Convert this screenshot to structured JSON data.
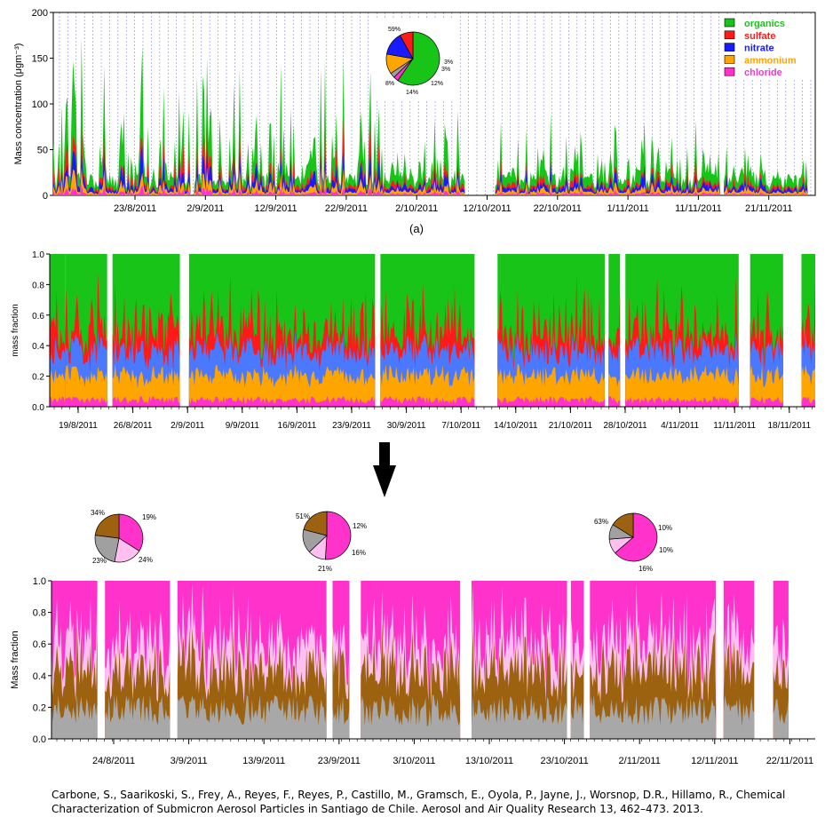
{
  "chart_data": [
    {
      "type": "area",
      "panel_label": "(a)",
      "ylabel": "Mass concentration (μgm⁻³)",
      "ylim": [
        0,
        200
      ],
      "y_ticks": [
        0,
        50,
        100,
        150,
        200
      ],
      "x_ticks": [
        "23/8/2011",
        "2/9/2011",
        "12/9/2011",
        "22/9/2011",
        "2/10/2011",
        "12/10/2011",
        "22/10/2011",
        "1/11/2011",
        "11/11/2011",
        "21/11/2011"
      ],
      "legend_position": "top-right",
      "series": [
        {
          "name": "organics",
          "color": "#18c418"
        },
        {
          "name": "sulfate",
          "color": "#ff1a1a"
        },
        {
          "name": "nitrate",
          "color": "#1a1aff"
        },
        {
          "name": "ammonium",
          "color": "#ffa500"
        },
        {
          "name": "chloride",
          "color": "#ff33cc"
        }
      ],
      "segments": [
        {
          "start": 0.0,
          "end": 0.18,
          "peak": 150
        },
        {
          "start": 0.185,
          "end": 0.42,
          "peak": 140
        },
        {
          "start": 0.42,
          "end": 0.54,
          "peak": 85
        },
        {
          "start": 0.58,
          "end": 0.875,
          "peak": 75
        },
        {
          "start": 0.88,
          "end": 0.99,
          "peak": 35
        }
      ],
      "inset_pie": {
        "slices": [
          {
            "name": "organics",
            "value": 59,
            "label": "59%",
            "color": "#18c418"
          },
          {
            "name": "chloride",
            "value": 3,
            "label": "3%",
            "color": "#ff33cc"
          },
          {
            "name": "other",
            "value": 3,
            "label": "3%",
            "color": "#a0a0a0"
          },
          {
            "name": "ammonium",
            "value": 12,
            "label": "12%",
            "color": "#ffa500"
          },
          {
            "name": "nitrate",
            "value": 14,
            "label": "14%",
            "color": "#1a1aff"
          },
          {
            "name": "sulfate",
            "value": 8,
            "label": "8%",
            "color": "#ff1a1a"
          }
        ]
      }
    },
    {
      "type": "area",
      "ylabel": "mass fraction",
      "ylim": [
        0,
        1
      ],
      "y_ticks": [
        "0.0",
        "0.2",
        "0.4",
        "0.6",
        "0.8",
        "1.0"
      ],
      "x_ticks": [
        "19/8/2011",
        "26/8/2011",
        "2/9/2011",
        "9/9/2011",
        "16/9/2011",
        "23/9/2011",
        "30/9/2011",
        "7/10/2011",
        "14/10/2011",
        "21/10/2011",
        "28/10/2011",
        "4/11/2011",
        "11/11/2011",
        "18/11/2011"
      ],
      "series": [
        {
          "name": "chloride",
          "color": "#ff33cc",
          "mean_fraction": 0.04
        },
        {
          "name": "ammonium",
          "color": "#ffa500",
          "mean_fraction": 0.16
        },
        {
          "name": "nitrate",
          "color": "#4a78ff",
          "mean_fraction": 0.16
        },
        {
          "name": "sulfate",
          "color": "#ff1a1a",
          "mean_fraction": 0.12
        },
        {
          "name": "organics",
          "color": "#18c418",
          "mean_fraction": 0.52
        }
      ],
      "segments": [
        {
          "start": 0.0,
          "end": 0.02
        },
        {
          "start": 0.02,
          "end": 0.075
        },
        {
          "start": 0.082,
          "end": 0.17
        },
        {
          "start": 0.182,
          "end": 0.425
        },
        {
          "start": 0.432,
          "end": 0.555
        },
        {
          "start": 0.585,
          "end": 0.725
        },
        {
          "start": 0.73,
          "end": 0.745
        },
        {
          "start": 0.752,
          "end": 0.9
        },
        {
          "start": 0.915,
          "end": 0.958
        },
        {
          "start": 0.982,
          "end": 1.0
        }
      ]
    },
    {
      "type": "area",
      "ylabel": "Mass fraction",
      "ylim": [
        0,
        1
      ],
      "y_ticks": [
        "0.0",
        "0.2",
        "0.4",
        "0.6",
        "0.8",
        "1.0"
      ],
      "x_ticks": [
        "24/8/2011",
        "3/9/2011",
        "13/9/2011",
        "23/9/2011",
        "3/10/2011",
        "13/10/2011",
        "23/10/2011",
        "2/11/2011",
        "12/11/2011",
        "22/11/2011"
      ],
      "series": [
        {
          "name": "grey",
          "color": "#a8a8a8",
          "mean_fraction": 0.2
        },
        {
          "name": "brown",
          "color": "#9c6210",
          "mean_fraction": 0.2
        },
        {
          "name": "light-pink",
          "color": "#ffc0f0",
          "mean_fraction": 0.14
        },
        {
          "name": "magenta",
          "color": "#ff33cc",
          "mean_fraction": 0.46
        }
      ],
      "segments": [
        {
          "start": 0.0,
          "end": 0.06
        },
        {
          "start": 0.07,
          "end": 0.155
        },
        {
          "start": 0.165,
          "end": 0.36
        },
        {
          "start": 0.368,
          "end": 0.39
        },
        {
          "start": 0.405,
          "end": 0.535
        },
        {
          "start": 0.55,
          "end": 0.675
        },
        {
          "start": 0.68,
          "end": 0.697
        },
        {
          "start": 0.705,
          "end": 0.87
        },
        {
          "start": 0.88,
          "end": 0.92
        },
        {
          "start": 0.945,
          "end": 0.965
        }
      ],
      "pies": [
        {
          "slices": [
            {
              "name": "magenta",
              "value": 34,
              "label": "34%",
              "color": "#ff33cc"
            },
            {
              "name": "light-pink",
              "value": 19,
              "label": "19%",
              "color": "#ffc0f0"
            },
            {
              "name": "grey",
              "value": 24,
              "label": "24%",
              "color": "#a0a0a0"
            },
            {
              "name": "brown",
              "value": 23,
              "label": "23%",
              "color": "#9c6210"
            }
          ]
        },
        {
          "slices": [
            {
              "name": "magenta",
              "value": 51,
              "label": "51%",
              "color": "#ff33cc"
            },
            {
              "name": "light-pink",
              "value": 12,
              "label": "12%",
              "color": "#ffc0f0"
            },
            {
              "name": "grey",
              "value": 16,
              "label": "16%",
              "color": "#a0a0a0"
            },
            {
              "name": "brown",
              "value": 21,
              "label": "21%",
              "color": "#9c6210"
            }
          ]
        },
        {
          "slices": [
            {
              "name": "magenta",
              "value": 63,
              "label": "63%",
              "color": "#ff33cc"
            },
            {
              "name": "light-pink",
              "value": 10,
              "label": "10%",
              "color": "#ffc0f0"
            },
            {
              "name": "grey",
              "value": 10,
              "label": "10%",
              "color": "#a0a0a0"
            },
            {
              "name": "brown",
              "value": 16,
              "label": "16%",
              "color": "#9c6210"
            }
          ]
        }
      ]
    }
  ],
  "arrow": {
    "color": "#000000"
  },
  "citation": "Carbone, S., Saarikoski, S., Frey, A., Reyes, F., Reyes, P., Castillo, M., Gramsch, E., Oyola, P., Jayne, J., Worsnop, D.R., Hillamo, R.,  Chemical Characterization of Submicron Aerosol Particles in Santiago de Chile. Aerosol and Air Quality Research 13, 462–473. 2013."
}
